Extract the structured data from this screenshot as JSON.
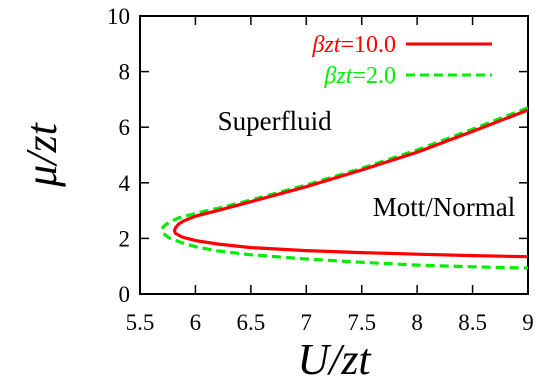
{
  "chart_data": {
    "type": "line",
    "xlabel": "U/zt",
    "ylabel": "μ/zt",
    "xlim": [
      5.5,
      9
    ],
    "ylim": [
      0,
      10
    ],
    "xticks": [
      "5.5",
      "6",
      "6.5",
      "7",
      "7.5",
      "8",
      "8.5",
      "9"
    ],
    "yticks": [
      "0",
      "2",
      "4",
      "6",
      "8",
      "10"
    ],
    "grid": false,
    "legend_position": "top-right",
    "annotations": [
      {
        "text": "Superfluid",
        "x": 6.2,
        "y": 5.9
      },
      {
        "text": "Mott/Normal",
        "x": 7.6,
        "y": 2.8
      }
    ],
    "series": [
      {
        "name": "βzt=10.0",
        "legend_main": "βzt",
        "legend_value": "=10.0",
        "color": "#ff0000",
        "dash": "solid",
        "points": [
          [
            9.0,
            6.62
          ],
          [
            8.5,
            5.85
          ],
          [
            8.0,
            5.1
          ],
          [
            7.5,
            4.46
          ],
          [
            7.0,
            3.86
          ],
          [
            6.5,
            3.32
          ],
          [
            6.2,
            3.0
          ],
          [
            6.0,
            2.8
          ],
          [
            5.9,
            2.64
          ],
          [
            5.85,
            2.52
          ],
          [
            5.82,
            2.38
          ],
          [
            5.81,
            2.28
          ],
          [
            5.82,
            2.18
          ],
          [
            5.88,
            2.05
          ],
          [
            6.0,
            1.92
          ],
          [
            6.2,
            1.8
          ],
          [
            6.5,
            1.67
          ],
          [
            7.0,
            1.56
          ],
          [
            7.5,
            1.49
          ],
          [
            8.0,
            1.43
          ],
          [
            8.5,
            1.38
          ],
          [
            9.0,
            1.34
          ]
        ]
      },
      {
        "name": "βzt=2.0",
        "legend_main": "βzt",
        "legend_value": "=2.0",
        "color": "#00ee00",
        "dash": "dashed",
        "points": [
          [
            9.0,
            6.7
          ],
          [
            8.5,
            5.93
          ],
          [
            8.0,
            5.18
          ],
          [
            7.5,
            4.52
          ],
          [
            7.0,
            3.92
          ],
          [
            6.5,
            3.38
          ],
          [
            6.2,
            3.08
          ],
          [
            6.0,
            2.9
          ],
          [
            5.85,
            2.74
          ],
          [
            5.76,
            2.58
          ],
          [
            5.71,
            2.42
          ],
          [
            5.7,
            2.3
          ],
          [
            5.71,
            2.18
          ],
          [
            5.76,
            2.02
          ],
          [
            5.88,
            1.84
          ],
          [
            6.0,
            1.7
          ],
          [
            6.2,
            1.55
          ],
          [
            6.5,
            1.41
          ],
          [
            7.0,
            1.26
          ],
          [
            7.5,
            1.14
          ],
          [
            8.0,
            1.04
          ],
          [
            8.5,
            0.98
          ],
          [
            9.0,
            0.93
          ]
        ]
      }
    ]
  }
}
